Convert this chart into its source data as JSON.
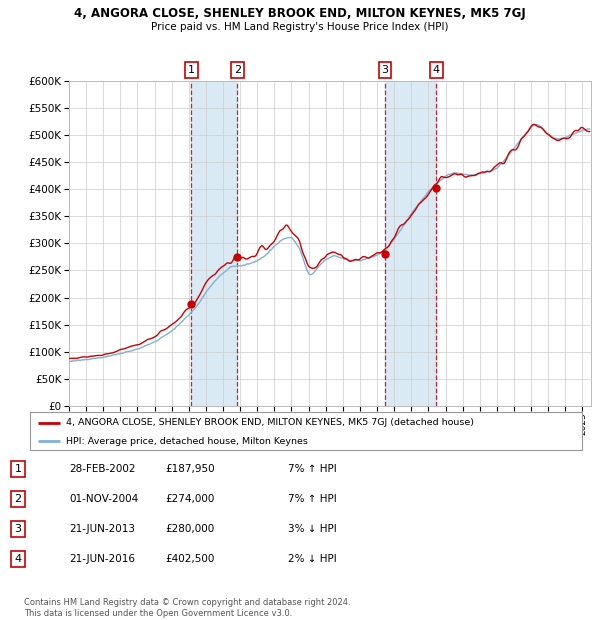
{
  "title1": "4, ANGORA CLOSE, SHENLEY BROOK END, MILTON KEYNES, MK5 7GJ",
  "title2": "Price paid vs. HM Land Registry's House Price Index (HPI)",
  "red_line_label": "4, ANGORA CLOSE, SHENLEY BROOK END, MILTON KEYNES, MK5 7GJ (detached house)",
  "blue_line_label": "HPI: Average price, detached house, Milton Keynes",
  "transactions": [
    {
      "num": 1,
      "date": "28-FEB-2002",
      "price": 187950,
      "price_str": "£187,950",
      "pct": "7%",
      "dir": "↑"
    },
    {
      "num": 2,
      "date": "01-NOV-2004",
      "price": 274000,
      "price_str": "£274,000",
      "pct": "7%",
      "dir": "↑"
    },
    {
      "num": 3,
      "date": "21-JUN-2013",
      "price": 280000,
      "price_str": "£280,000",
      "pct": "3%",
      "dir": "↓"
    },
    {
      "num": 4,
      "date": "21-JUN-2016",
      "price": 402500,
      "price_str": "£402,500",
      "pct": "2%",
      "dir": "↓"
    }
  ],
  "transaction_dates_decimal": [
    2002.154,
    2004.836,
    2013.472,
    2016.472
  ],
  "footnote1": "Contains HM Land Registry data © Crown copyright and database right 2024.",
  "footnote2": "This data is licensed under the Open Government Licence v3.0.",
  "ylim": [
    0,
    600000
  ],
  "yticks": [
    0,
    50000,
    100000,
    150000,
    200000,
    250000,
    300000,
    350000,
    400000,
    450000,
    500000,
    550000,
    600000
  ],
  "red_color": "#cc0000",
  "blue_color": "#7fb3d3",
  "bg_color": "#ffffff",
  "grid_color": "#cccccc",
  "highlight_color": "#daeaf5",
  "xstart": 1995.0,
  "xend": 2025.5
}
